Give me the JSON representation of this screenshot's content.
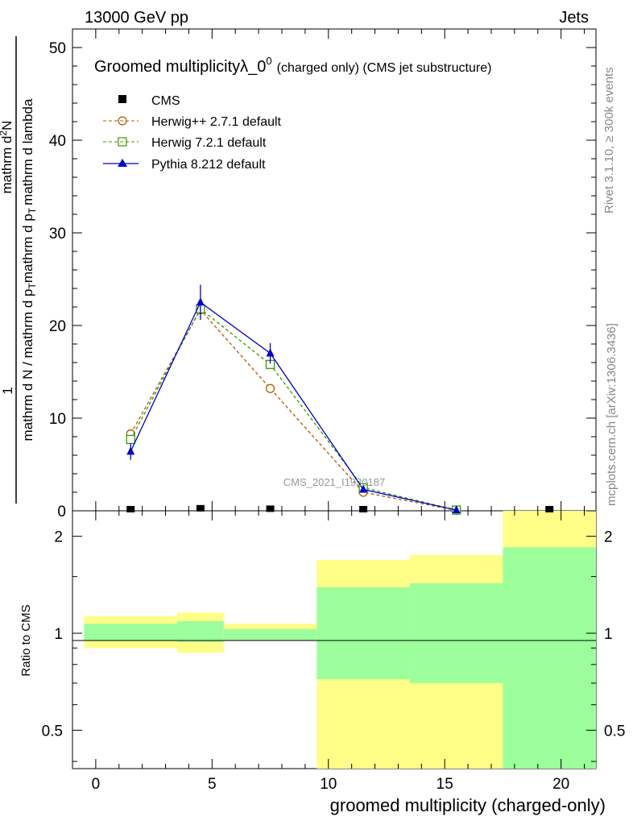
{
  "header": {
    "energy_label": "13000 GeV pp",
    "process_label": "Jets"
  },
  "side_labels": {
    "rivet": "Rivet 3.1.10, ≥ 300k events",
    "mcplots": "mcplots.cern.ch [arXiv:1306.3436]"
  },
  "chart_data": [
    {
      "type": "line",
      "title_main": "Groomed multiplicityλ_0",
      "title_sup": "0",
      "title_suffix": "(charged only) (CMS jet substructure)",
      "watermark": "CMS_2021_I1920187",
      "ylabel_top": "1",
      "ylabel_bottom": "mathrm d N / mathrm d p",
      "ylabel_bottom_sub": "T",
      "ylabel_bottom_rest": "mathrm d p",
      "ylabel_bottom_sub2": "T",
      "ylabel_bottom_tail": "mathrm d lambda",
      "ylabel_num": "mathrm d",
      "ylabel_num_sup": "2",
      "ylabel_num_tail": "N",
      "ylim": [
        0,
        52
      ],
      "yticks": [
        0,
        10,
        20,
        30,
        40,
        50
      ],
      "xlim": [
        -1,
        21.5
      ],
      "x": [
        1.5,
        4.5,
        7.5,
        11.5,
        15.5,
        19.5
      ],
      "series": [
        {
          "name": "CMS",
          "color": "#000000",
          "marker": "square-filled",
          "values": [
            0.0,
            0.1,
            0.05,
            0.0,
            0.0,
            0.0
          ]
        },
        {
          "name": "Herwig++ 2.7.1 default",
          "color": "#b35a00",
          "marker": "circle-open",
          "values": [
            8.3,
            21.7,
            13.2,
            2.0,
            0.05,
            null
          ]
        },
        {
          "name": "Herwig 7.2.1 default",
          "color": "#3a9a00",
          "marker": "square-open",
          "values": [
            7.7,
            21.8,
            15.8,
            2.5,
            0.08,
            null
          ]
        },
        {
          "name": "Pythia 8.212 default",
          "color": "#0000d0",
          "marker": "triangle-filled",
          "values": [
            6.4,
            22.5,
            17.0,
            2.3,
            0.08,
            null
          ],
          "errors": [
            0.9,
            1.9,
            1.1,
            0.3,
            0.05,
            null
          ]
        }
      ]
    },
    {
      "type": "area",
      "ylabel": "Ratio to CMS",
      "xlabel": "groomed multiplicity (charged-only)",
      "yscale": "log",
      "ylim": [
        0.38,
        2.4
      ],
      "yticks": [
        0.5,
        1,
        2
      ],
      "xticks": [
        0,
        5,
        10,
        15,
        20
      ],
      "xlim": [
        -1,
        21.5
      ],
      "bins": [
        {
          "lo": -0.5,
          "hi": 3.5,
          "stat": [
            0.95,
            1.07
          ],
          "total": [
            0.9,
            1.13
          ]
        },
        {
          "lo": 3.5,
          "hi": 5.5,
          "stat": [
            0.94,
            1.09
          ],
          "total": [
            0.87,
            1.16
          ]
        },
        {
          "lo": 5.5,
          "hi": 9.5,
          "stat": [
            0.95,
            1.03
          ],
          "total": [
            0.95,
            1.07
          ]
        },
        {
          "lo": 9.5,
          "hi": 13.5,
          "stat": [
            0.72,
            1.39
          ],
          "total": [
            0.38,
            1.69
          ]
        },
        {
          "lo": 13.5,
          "hi": 17.5,
          "stat": [
            0.7,
            1.43
          ],
          "total": [
            0.38,
            1.75
          ]
        },
        {
          "lo": 17.5,
          "hi": 21.5,
          "stat": [
            0.38,
            1.85
          ],
          "total": [
            0.38,
            2.4
          ]
        }
      ],
      "colors": {
        "stat": "#9cff9c",
        "total": "#ffff88"
      }
    }
  ]
}
